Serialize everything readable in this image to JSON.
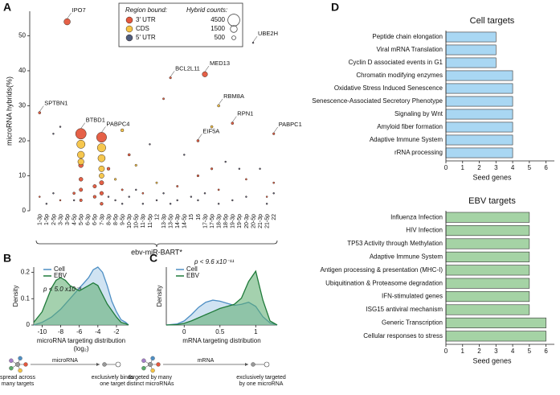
{
  "chart_data": [
    {
      "type": "scatter",
      "panel_label": "A",
      "ylabel": "microRNA hybrids(%)",
      "xlabel": "ebv-miR-BART*",
      "categories": [
        "1-3p",
        "1-5p",
        "2-5p",
        "3-3p",
        "3-5p",
        "4-5p",
        "5-5p",
        "6-3p",
        "6-5p",
        "7-3p",
        "8-3p",
        "8-5p",
        "9-5p",
        "10-3p",
        "10-5p",
        "11-3p",
        "11-5p",
        "12",
        "13-3p",
        "13-5p",
        "14-3p",
        "14-5p",
        "15",
        "16",
        "17-3p",
        "17-5p",
        "18-3p",
        "18-5p",
        "19-3p",
        "19-5p",
        "20-3p",
        "20-5p",
        "21-3p",
        "21-5p",
        "22"
      ],
      "ylim": [
        0,
        57
      ],
      "yticks": [
        0,
        10,
        20,
        30,
        40,
        50
      ],
      "legend_title": "Region bound:",
      "size_legend": {
        "title": "Hybrid counts:",
        "values": [
          4500,
          1500,
          500
        ]
      },
      "series": [
        {
          "name": "3′ UTR",
          "color": "#e4573d",
          "x": [
            "1-3p",
            "3-5p",
            "5-5p",
            "5-5p",
            "5-5p",
            "5-5p",
            "5-5p",
            "7-3p",
            "7-3p",
            "7-3p",
            "7-3p",
            "6-5p",
            "6-5p",
            "4-5p",
            "8-3p",
            "10-3p",
            "13-3p",
            "13-5p",
            "17-3p",
            "16",
            "16",
            "19-3p",
            "22",
            "22",
            "17-5p",
            "20-3p",
            "1-3p",
            "3-3p",
            "9-5p",
            "11-3p",
            "14-3p",
            "18-3p",
            "21-5p"
          ],
          "values": [
            28,
            54,
            22,
            13,
            9,
            6,
            3,
            21,
            8,
            5,
            2,
            7,
            4,
            5,
            12,
            16,
            32,
            38,
            39,
            20,
            10,
            25,
            22,
            8,
            12,
            9,
            4,
            3,
            6,
            5,
            7,
            6,
            4
          ],
          "sizes": [
            200,
            1300,
            3600,
            700,
            500,
            400,
            250,
            3200,
            600,
            450,
            300,
            400,
            300,
            200,
            300,
            200,
            120,
            150,
            900,
            200,
            150,
            200,
            150,
            100,
            150,
            100,
            80,
            80,
            120,
            100,
            120,
            100,
            80
          ],
          "labels": [
            "SPTBN1",
            "IPO7",
            "BTBD1",
            null,
            null,
            null,
            null,
            "PABPC4",
            null,
            null,
            null,
            null,
            null,
            null,
            null,
            null,
            null,
            "BCL2L11",
            "MED13",
            "EIF5A",
            null,
            "RPN1",
            "PABPC1",
            null,
            null,
            null,
            null,
            null,
            null,
            null,
            null,
            null,
            null
          ]
        },
        {
          "name": "CDS",
          "color": "#f6c445",
          "x": [
            "5-5p",
            "5-5p",
            "5-5p",
            "7-3p",
            "7-3p",
            "7-3p",
            "7-3p",
            "9-5p",
            "10-5p",
            "18-3p",
            "17-5p",
            "8-5p",
            "12"
          ],
          "values": [
            19,
            16,
            14,
            18,
            15,
            12,
            10,
            23,
            13,
            30,
            24,
            9,
            8
          ],
          "sizes": [
            2200,
            1600,
            1200,
            2300,
            1700,
            1100,
            800,
            300,
            150,
            200,
            200,
            150,
            120
          ],
          "labels": [
            null,
            null,
            null,
            null,
            null,
            null,
            null,
            null,
            null,
            "RBM8A",
            null,
            null,
            null
          ]
        },
        {
          "name": "5′ UTR",
          "color": "#4f5d7e",
          "x": [
            "20-5p",
            "2-5p",
            "3-3p",
            "11-5p",
            "14-5p",
            "18-5p",
            "19-5p",
            "1-5p",
            "2-5p",
            "4-5p",
            "8-3p",
            "8-5p",
            "9-5p",
            "10-3p",
            "10-5p",
            "11-3p",
            "12",
            "13-3p",
            "13-5p",
            "14-3p",
            "15",
            "16",
            "17-3p",
            "18-3p",
            "19-3p",
            "20-3p",
            "21-3p",
            "21-5p",
            "22"
          ],
          "values": [
            48,
            22,
            24,
            19,
            16,
            14,
            12,
            2,
            5,
            3,
            4,
            3,
            2,
            4,
            6,
            2,
            3,
            5,
            2,
            3,
            4,
            3,
            5,
            2,
            3,
            4,
            12,
            2,
            5
          ],
          "sizes": [
            40,
            30,
            30,
            30,
            30,
            30,
            30,
            20,
            20,
            20,
            20,
            20,
            20,
            20,
            20,
            20,
            20,
            20,
            20,
            20,
            20,
            20,
            20,
            20,
            20,
            20,
            20,
            20,
            20
          ],
          "labels": [
            "UBE2H",
            null,
            null,
            null,
            null,
            null,
            null,
            null,
            null,
            null,
            null,
            null,
            null,
            null,
            null,
            null,
            null,
            null,
            null,
            null,
            null,
            null,
            null,
            null,
            null,
            null,
            null,
            null,
            null
          ]
        }
      ]
    },
    {
      "type": "density",
      "panel_label": "B",
      "annotation": "p < 5.0 x10⁻⁹",
      "xlabel": "microRNA targeting distribution",
      "xlabel_unit": "(log₂)",
      "ylabel": "Density",
      "xlim": [
        -10.9,
        -0.7
      ],
      "xticks": [
        -10,
        -8,
        -6,
        -4,
        -2
      ],
      "ylim": [
        0,
        0.22
      ],
      "yticks": [
        0,
        0.1,
        0.2
      ],
      "schematic": {
        "left": [
          "spread across",
          "many targets"
        ],
        "middle": "microRNA",
        "right": [
          "exclusively binds",
          "one target"
        ]
      },
      "series": [
        {
          "name": "Cell",
          "color": "#a9cce8",
          "line_color": "#4e8fc4",
          "x": [
            -10.9,
            -10,
            -9,
            -8,
            -7,
            -6,
            -5,
            -4.5,
            -4,
            -3.5,
            -3,
            -2.5,
            -2,
            -1.5,
            -1,
            -0.7
          ],
          "values": [
            0,
            0.01,
            0.03,
            0.06,
            0.1,
            0.14,
            0.18,
            0.21,
            0.22,
            0.2,
            0.15,
            0.09,
            0.05,
            0.02,
            0.01,
            0
          ]
        },
        {
          "name": "EBV",
          "color": "#5aab6b",
          "line_color": "#1f7a3a",
          "x": [
            -10.9,
            -10,
            -9,
            -8.5,
            -8,
            -7.5,
            -7,
            -6,
            -5,
            -4.5,
            -4,
            -3,
            -2,
            -1.5,
            -1,
            -0.7
          ],
          "values": [
            0.01,
            0.05,
            0.14,
            0.17,
            0.18,
            0.17,
            0.15,
            0.13,
            0.15,
            0.16,
            0.15,
            0.08,
            0.03,
            0.01,
            0.005,
            0
          ]
        }
      ]
    },
    {
      "type": "density",
      "panel_label": "C",
      "annotation": "p < 9.6 x10⁻¹¹",
      "xlabel": "mRNA targeting distribution",
      "ylabel": "Density",
      "xlim": [
        -0.25,
        1.3
      ],
      "xticks": [
        0,
        0.5,
        1
      ],
      "ylim": [
        0,
        2.8
      ],
      "schematic": {
        "left": [
          "targeted by many",
          "distinct microRNAs"
        ],
        "middle": "mRNA",
        "right": [
          "exclusively targeted",
          "by one microRNA"
        ]
      },
      "series": [
        {
          "name": "Cell",
          "color": "#a9cce8",
          "line_color": "#4e8fc4",
          "x": [
            -0.25,
            -0.1,
            0,
            0.1,
            0.2,
            0.3,
            0.4,
            0.5,
            0.6,
            0.7,
            0.8,
            0.9,
            1,
            1.1,
            1.2,
            1.3
          ],
          "values": [
            0,
            0.05,
            0.2,
            0.5,
            0.85,
            1.1,
            1.2,
            1.15,
            1.05,
            0.95,
            1.0,
            1.1,
            0.9,
            0.4,
            0.1,
            0
          ]
        },
        {
          "name": "EBV",
          "color": "#5aab6b",
          "line_color": "#1f7a3a",
          "x": [
            -0.25,
            -0.1,
            0,
            0.1,
            0.2,
            0.3,
            0.4,
            0.5,
            0.6,
            0.7,
            0.8,
            0.9,
            1,
            1.1,
            1.2,
            1.3
          ],
          "values": [
            0,
            0.02,
            0.08,
            0.2,
            0.35,
            0.5,
            0.65,
            0.8,
            0.9,
            1.0,
            1.3,
            2.1,
            2.6,
            1.2,
            0.2,
            0
          ]
        }
      ]
    },
    {
      "type": "barh",
      "panel_label": "D",
      "title": "Cell targets",
      "xlabel": "Seed genes",
      "color": "#a9d7f3",
      "categories": [
        "Peptide chain elongation",
        "Viral mRNA Translation",
        "Cyclin D associated events in G1",
        "Chromatin modifying enzymes",
        "Oxidative Stress Induced Senescence",
        "Senescence-Associated Secretory Phenotype",
        "Signaling by Wnt",
        "Amyloid fiber formation",
        "Adaptive Immune System",
        "rRNA processing"
      ],
      "values": [
        3,
        3,
        3,
        4,
        4,
        4,
        4,
        4,
        4,
        4
      ],
      "xlim": [
        0,
        6.5
      ],
      "xticks": [
        0,
        1,
        2,
        3,
        4,
        5,
        6
      ]
    },
    {
      "type": "barh",
      "title": "EBV targets",
      "xlabel": "Seed genes",
      "color": "#a5d3a5",
      "categories": [
        "Influenza Infection",
        "HIV Infection",
        "TP53 Activity through Methylation",
        "Adaptive Immune System",
        "Antigen processing & presentation (MHC-I)",
        "Ubiquitination & Proteasome degradation",
        "IFN-stimulated genes",
        "ISG15 antiviral mechanism",
        "Generic Transcription",
        "Cellular responses to stress"
      ],
      "values": [
        5,
        5,
        5,
        5,
        5,
        5,
        5,
        5,
        6,
        6
      ],
      "xlim": [
        0,
        6.5
      ],
      "xticks": [
        0,
        1,
        2,
        3,
        4,
        5,
        6
      ]
    }
  ]
}
